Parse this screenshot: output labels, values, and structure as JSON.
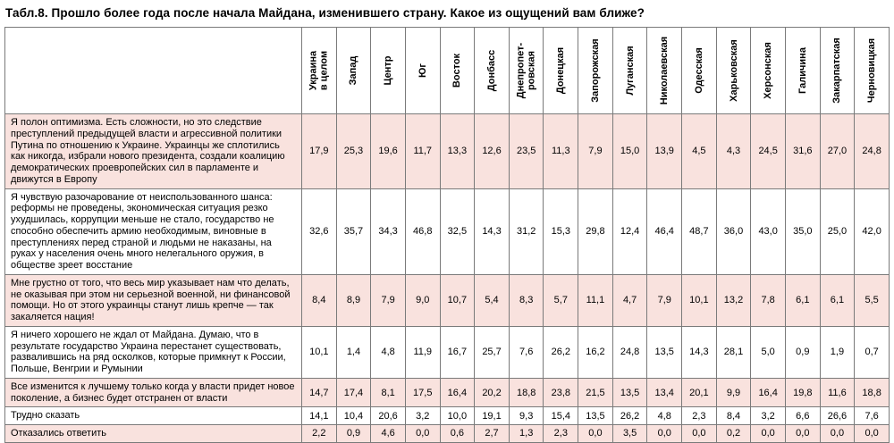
{
  "title": "Табл.8. Прошло более года после начала Майдана, изменившего страну. Какое из ощущений вам ближе?",
  "colors": {
    "row_pink": "#f9e2de",
    "row_white": "#ffffff",
    "border": "#7a7a7a",
    "text": "#000000"
  },
  "table": {
    "columns": [
      "Украина\nв целом",
      "Запад",
      "Центр",
      "Юг",
      "Восток",
      "Донбасс",
      "Днепропет-\nровская",
      "Донецкая",
      "Запорожская",
      "Луганская",
      "Николаевская",
      "Одесская",
      "Харьковская",
      "Херсонская",
      "Галичина",
      "Закарпатская",
      "Черновицкая"
    ],
    "rows": [
      {
        "label": "Я полон оптимизма. Есть сложности, но это следствие преступлений предыдущей власти и агрессивной политики Путина по отношению к Украине. Украинцы же сплотились как никогда, избрали нового президента, создали коалицию демократических проевропейских сил в парламенте и движутся в Европу",
        "values": [
          "17,9",
          "25,3",
          "19,6",
          "11,7",
          "13,3",
          "12,6",
          "23,5",
          "11,3",
          "7,9",
          "15,0",
          "13,9",
          "4,5",
          "4,3",
          "24,5",
          "31,6",
          "27,0",
          "24,8"
        ]
      },
      {
        "label": "Я чувствую разочарование от неиспользованного шанса: реформы не проведены, экономическая ситуация резко ухудшилась, коррупции меньше не стало, государство не способно обеспечить армию необходимым, виновные в преступлениях перед страной и людьми не наказаны, на руках у населения очень много нелегального оружия, в обществе зреет восстание",
        "values": [
          "32,6",
          "35,7",
          "34,3",
          "46,8",
          "32,5",
          "14,3",
          "31,2",
          "15,3",
          "29,8",
          "12,4",
          "46,4",
          "48,7",
          "36,0",
          "43,0",
          "35,0",
          "25,0",
          "42,0"
        ]
      },
      {
        "label": "Мне грустно от того, что весь мир указывает нам что делать, не оказывая при этом ни серьезной военной, ни финансовой помощи. Но от этого украинцы станут лишь крепче — так закаляется нация!",
        "values": [
          "8,4",
          "8,9",
          "7,9",
          "9,0",
          "10,7",
          "5,4",
          "8,3",
          "5,7",
          "11,1",
          "4,7",
          "7,9",
          "10,1",
          "13,2",
          "7,8",
          "6,1",
          "6,1",
          "5,5"
        ]
      },
      {
        "label": "Я ничего хорошего не ждал от Майдана. Думаю, что в результате государство Украина перестанет существовать, развалившись на ряд осколков, которые примкнут к России, Польше, Венгрии и Румынии",
        "values": [
          "10,1",
          "1,4",
          "4,8",
          "11,9",
          "16,7",
          "25,7",
          "7,6",
          "26,2",
          "16,2",
          "24,8",
          "13,5",
          "14,3",
          "28,1",
          "5,0",
          "0,9",
          "1,9",
          "0,7"
        ]
      },
      {
        "label": "Все изменится к лучшему только когда у власти придет новое поколение, а бизнес будет отстранен от власти",
        "values": [
          "14,7",
          "17,4",
          "8,1",
          "17,5",
          "16,4",
          "20,2",
          "18,8",
          "23,8",
          "21,5",
          "13,5",
          "13,4",
          "20,1",
          "9,9",
          "16,4",
          "19,8",
          "11,6",
          "18,8"
        ]
      },
      {
        "label": "Трудно сказать",
        "values": [
          "14,1",
          "10,4",
          "20,6",
          "3,2",
          "10,0",
          "19,1",
          "9,3",
          "15,4",
          "13,5",
          "26,2",
          "4,8",
          "2,3",
          "8,4",
          "3,2",
          "6,6",
          "26,6",
          "7,6"
        ]
      },
      {
        "label": "Отказались ответить",
        "values": [
          "2,2",
          "0,9",
          "4,6",
          "0,0",
          "0,6",
          "2,7",
          "1,3",
          "2,3",
          "0,0",
          "3,5",
          "0,0",
          "0,0",
          "0,2",
          "0,0",
          "0,0",
          "0,0",
          "0,0"
        ]
      }
    ]
  }
}
